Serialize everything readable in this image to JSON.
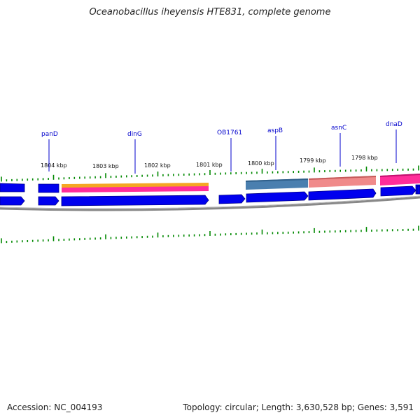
{
  "title": "Oceanobacillus iheyensis HTE831, complete genome",
  "footer": {
    "accession": "Accession: NC_004193",
    "topology": "Topology: circular; Length: 3,630,528 bp; Genes: 3,591"
  },
  "scale_labels": [
    "1804 kbp",
    "1803 kbp",
    "1802 kbp",
    "1801 kbp",
    "1800 kbp",
    "1799 kbp",
    "1798 kbp"
  ],
  "gene_labels": [
    "panD",
    "dinG",
    "OB1761",
    "aspB",
    "asnC",
    "dnaD"
  ],
  "colors": {
    "gene": "#0000ee",
    "tick": "#008800",
    "label": "#0000cc",
    "backbone": "#888888",
    "cog_orange": "#f5a623",
    "cog_pink": "#ff2d9a",
    "cog_steelblue": "#4a7faf",
    "cog_salmon": "#f08a8a"
  }
}
